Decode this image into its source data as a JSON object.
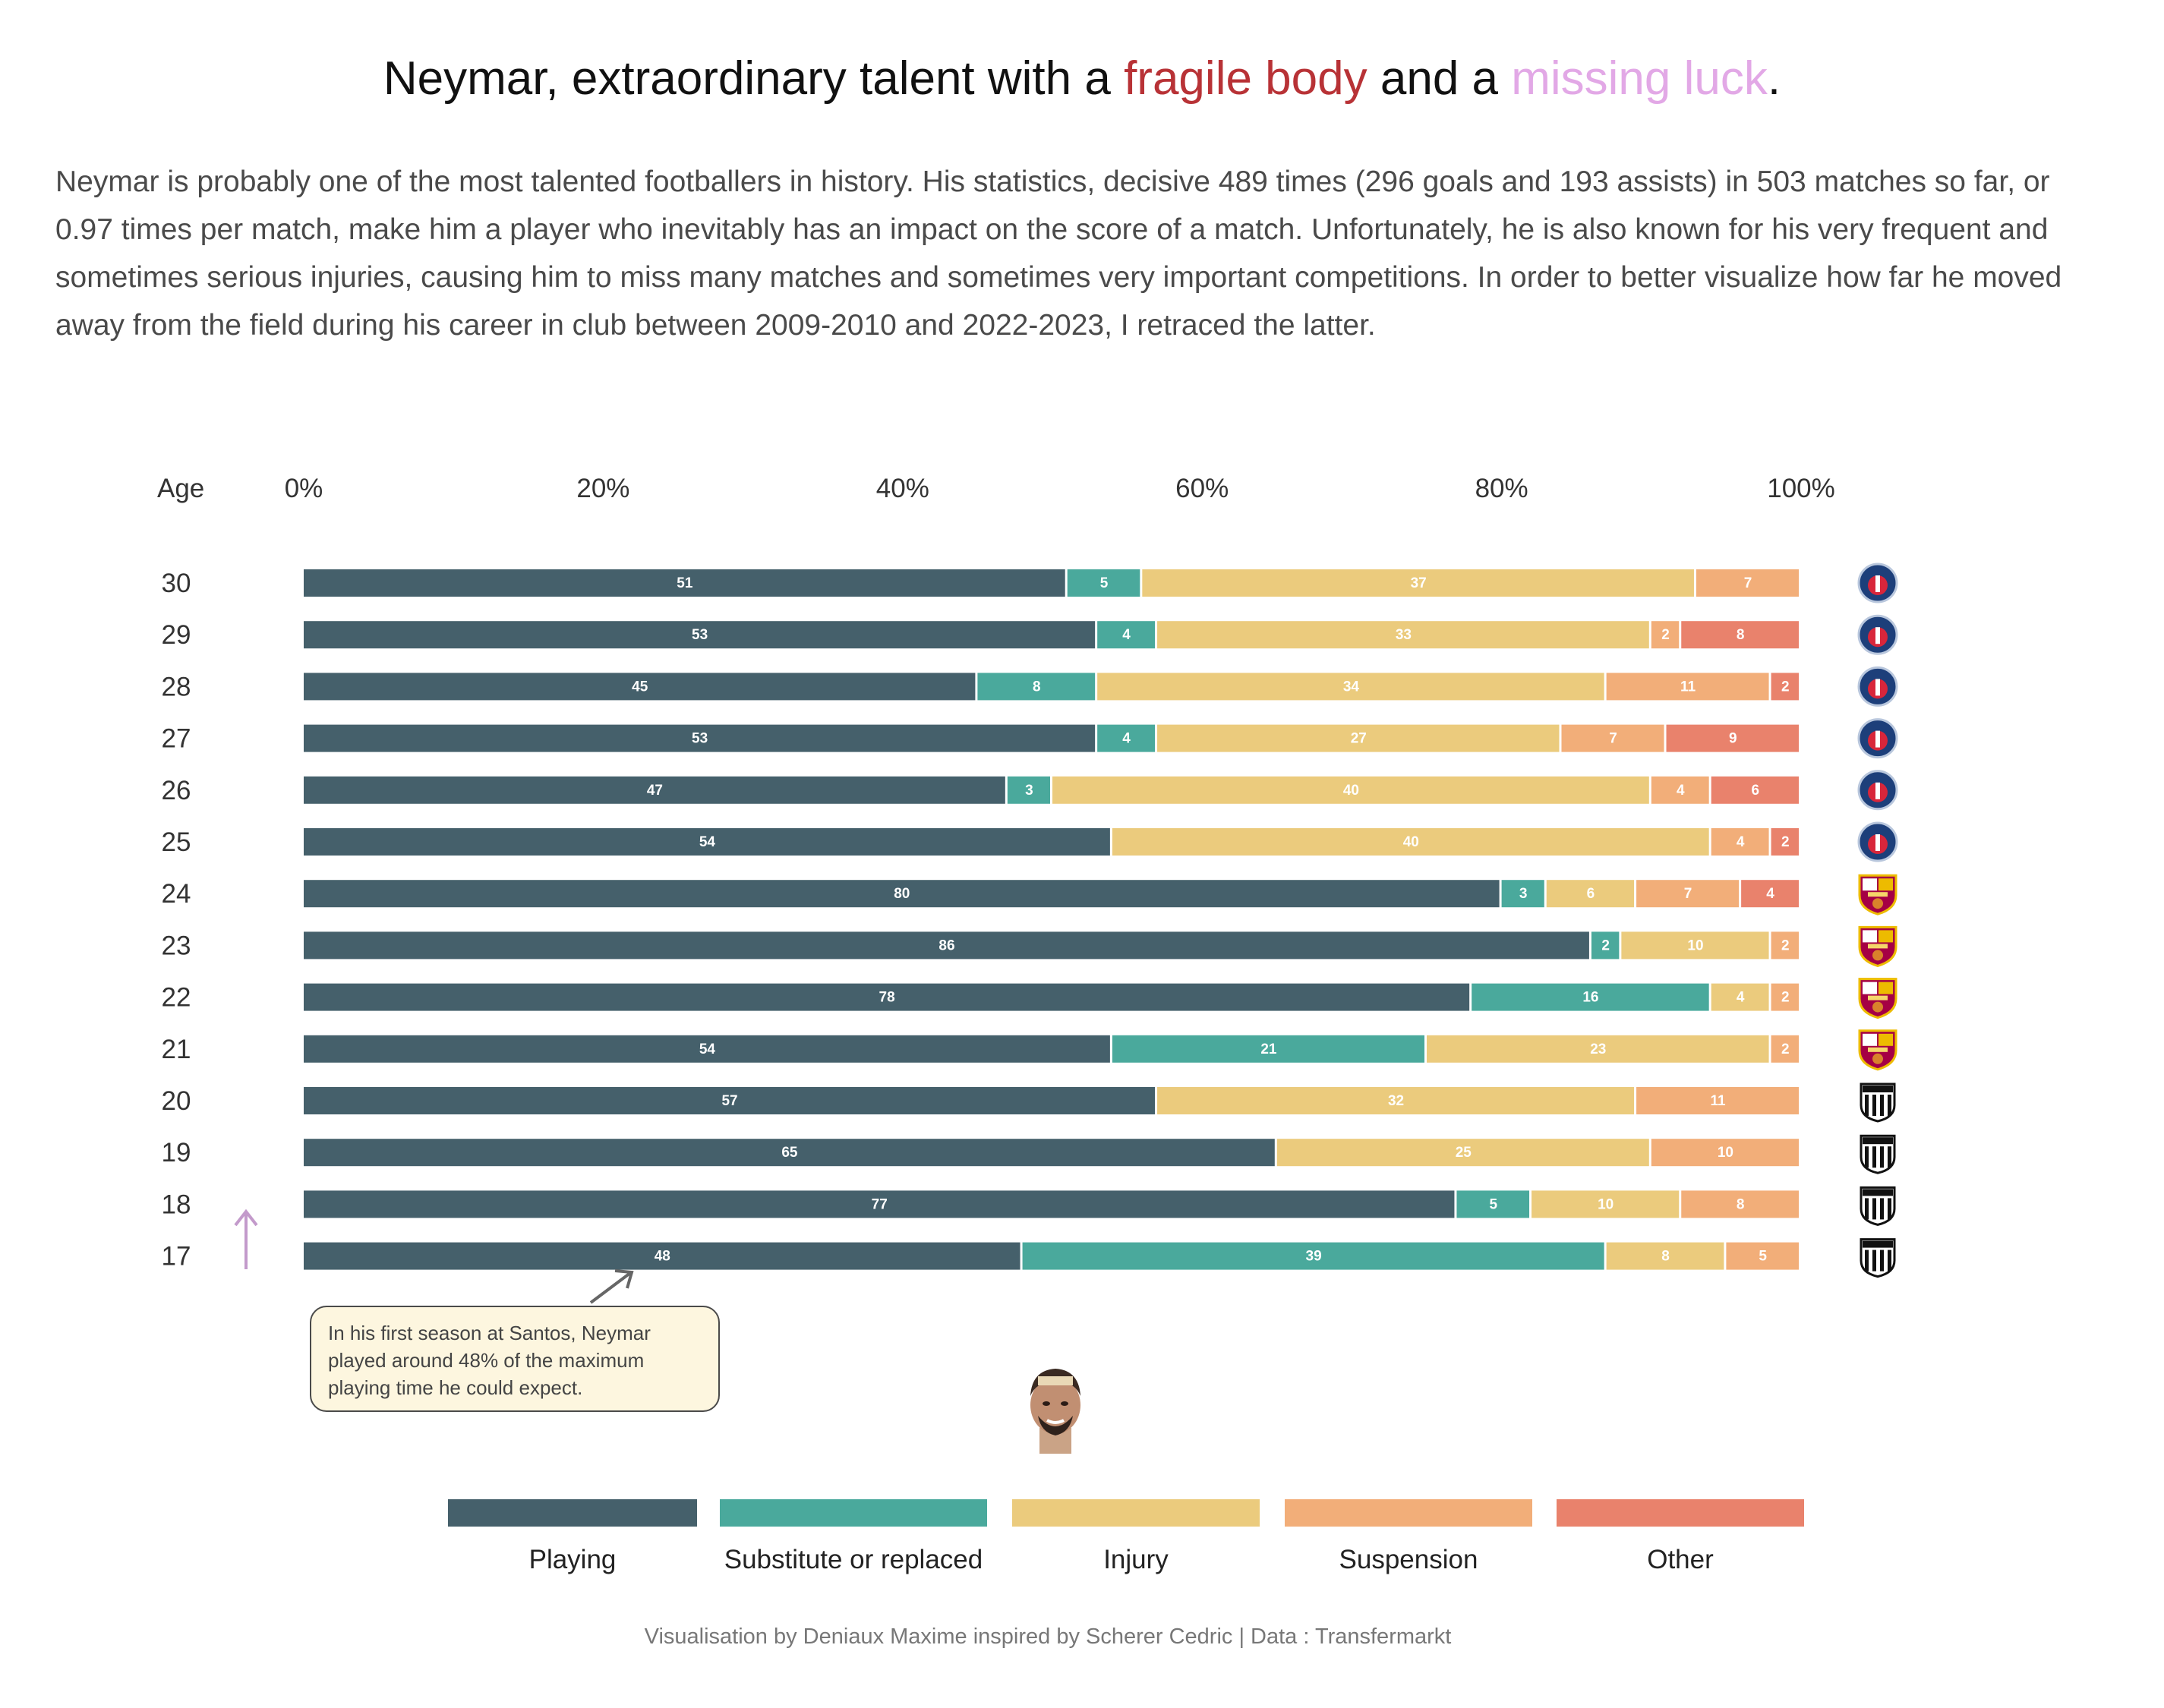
{
  "title": {
    "part1": "Neymar, extraordinary talent with a ",
    "highlight1": "fragile body",
    "part2": " and a ",
    "highlight2": "missing luck",
    "part3": ".",
    "highlight1_color": "#b83236",
    "highlight2_color": "#e2a8e6"
  },
  "subtitle": "Neymar is probably one of the most talented footballers in history. His statistics, decisive 489 times (296 goals and 193 assists) in 503 matches so far, or 0.97 times per match, make him a player who inevitably has an impact on the score of a match. Unfortunately, he is also known for his very frequent and sometimes serious injuries, causing him to miss many matches and sometimes very important competitions. In order to better visualize how far he moved away from the field during his career in club between 2009-2010 and 2022-2023, I retraced the latter.",
  "chart_data": {
    "type": "bar",
    "orientation": "horizontal",
    "stacked": "percent",
    "y_axis_label": "Age",
    "x_ticks": [
      "0%",
      "20%",
      "40%",
      "60%",
      "80%",
      "100%"
    ],
    "categories": [
      "Playing",
      "Substitute or replaced",
      "Injury",
      "Suspension",
      "Other"
    ],
    "colors": [
      "#45606b",
      "#4aa99c",
      "#ebcb7d",
      "#f2ae79",
      "#e9826c"
    ],
    "rows": [
      {
        "age": "30",
        "club": "PSG",
        "values": [
          51,
          5,
          37,
          7,
          0
        ]
      },
      {
        "age": "29",
        "club": "PSG",
        "values": [
          53,
          4,
          33,
          2,
          8
        ]
      },
      {
        "age": "28",
        "club": "PSG",
        "values": [
          45,
          8,
          34,
          11,
          2
        ]
      },
      {
        "age": "27",
        "club": "PSG",
        "values": [
          53,
          4,
          27,
          7,
          9
        ]
      },
      {
        "age": "26",
        "club": "PSG",
        "values": [
          47,
          3,
          40,
          4,
          6
        ]
      },
      {
        "age": "25",
        "club": "PSG",
        "values": [
          54,
          0,
          40,
          4,
          2
        ]
      },
      {
        "age": "24",
        "club": "Barcelona",
        "values": [
          80,
          3,
          6,
          7,
          4
        ]
      },
      {
        "age": "23",
        "club": "Barcelona",
        "values": [
          86,
          2,
          10,
          2,
          0
        ]
      },
      {
        "age": "22",
        "club": "Barcelona",
        "values": [
          78,
          16,
          4,
          2,
          0
        ]
      },
      {
        "age": "21",
        "club": "Barcelona",
        "values": [
          54,
          21,
          23,
          2,
          0
        ]
      },
      {
        "age": "20",
        "club": "Santos",
        "values": [
          57,
          0,
          32,
          11,
          0
        ]
      },
      {
        "age": "19",
        "club": "Santos",
        "values": [
          65,
          0,
          25,
          10,
          0
        ]
      },
      {
        "age": "18",
        "club": "Santos",
        "values": [
          77,
          5,
          10,
          8,
          0
        ]
      },
      {
        "age": "17",
        "club": "Santos",
        "values": [
          48,
          39,
          8,
          5,
          0
        ]
      }
    ],
    "annotation": "In his first season at Santos, Neymar played around 48% of the maximum playing time he could expect.",
    "arrow_color": "#c39acb"
  },
  "footer": "Visualisation by Deniaux Maxime inspired by Scherer Cedric | Data : Transfermarkt"
}
